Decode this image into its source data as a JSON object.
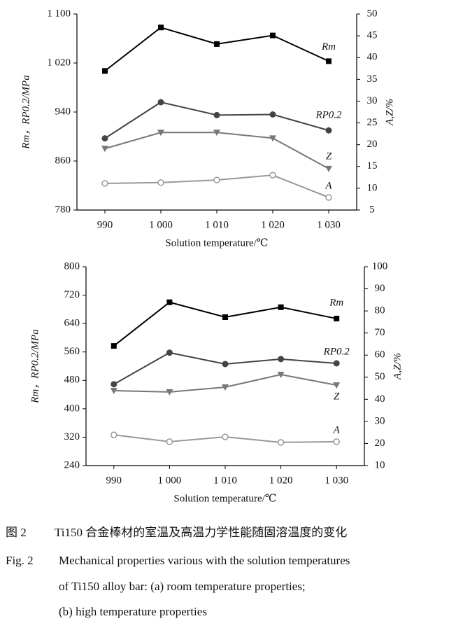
{
  "chart_data": [
    {
      "type": "line",
      "categories": [
        "990",
        "1 000",
        "1 010",
        "1 020",
        "1 030"
      ],
      "xlabel": "Solution temperature/℃",
      "ylabel": "Rm，RP0.2/MPa",
      "y2label": "A,Z/%",
      "ylim": [
        780,
        1100
      ],
      "yticks": [
        780,
        860,
        940,
        {
          "value": 1020,
          "label": "1 020"
        },
        {
          "value": 1100,
          "label": "1 100"
        }
      ],
      "y2lim": [
        5,
        50
      ],
      "y2ticks": [
        5,
        10,
        15,
        20,
        25,
        30,
        35,
        40,
        45,
        50
      ],
      "series": [
        {
          "name": "Rm",
          "color": "#000000",
          "marker": "square",
          "values": [
            1007,
            1078,
            1051,
            1065,
            1023
          ]
        },
        {
          "name": "RP0.2",
          "color": "#444444",
          "marker": "circle",
          "values": [
            897,
            956,
            935,
            936,
            910
          ]
        },
        {
          "name": "Z",
          "color": "#777777",
          "marker": "triangle-down",
          "axis": "y2",
          "values": [
            19.1,
            22.8,
            22.8,
            21.5,
            14.5
          ]
        },
        {
          "name": "A",
          "color": "#999999",
          "marker": "circle-open",
          "axis": "y2",
          "values": [
            11.1,
            11.3,
            11.9,
            13.0,
            7.9
          ]
        }
      ]
    },
    {
      "type": "line",
      "categories": [
        "990",
        "1 000",
        "1 010",
        "1 020",
        "1 030"
      ],
      "xlabel": "Solution temperature/℃",
      "ylabel": "Rm，RP0.2/MPa",
      "y2label": "A,Z/%",
      "ylim": [
        240,
        800
      ],
      "yticks": [
        240,
        320,
        400,
        480,
        560,
        640,
        720,
        800
      ],
      "y2lim": [
        10,
        100
      ],
      "y2ticks": [
        10,
        20,
        30,
        40,
        50,
        60,
        70,
        80,
        90,
        100
      ],
      "series": [
        {
          "name": "Rm",
          "color": "#000000",
          "marker": "square",
          "values": [
            577,
            700,
            658,
            686,
            654
          ]
        },
        {
          "name": "RP0.2",
          "color": "#444444",
          "marker": "circle",
          "values": [
            469,
            558,
            526,
            540,
            528
          ]
        },
        {
          "name": "Z",
          "color": "#777777",
          "marker": "triangle-down",
          "axis": "y2",
          "values": [
            43.9,
            43.3,
            45.5,
            51.2,
            46.4
          ]
        },
        {
          "name": "A",
          "color": "#999999",
          "marker": "circle-open",
          "axis": "y2",
          "values": [
            23.9,
            20.8,
            23.0,
            20.5,
            20.8
          ]
        }
      ]
    }
  ],
  "caption": {
    "cn": {
      "label": "图 2",
      "text": "Ti150 合金棒材的室温及高温力学性能随固溶温度的变化"
    },
    "en": {
      "label": "Fig. 2",
      "lines": [
        "Mechanical properties various with the solution temperatures",
        "of Ti150 alloy bar: (a) room temperature properties;",
        "(b) high temperature properties"
      ]
    }
  }
}
